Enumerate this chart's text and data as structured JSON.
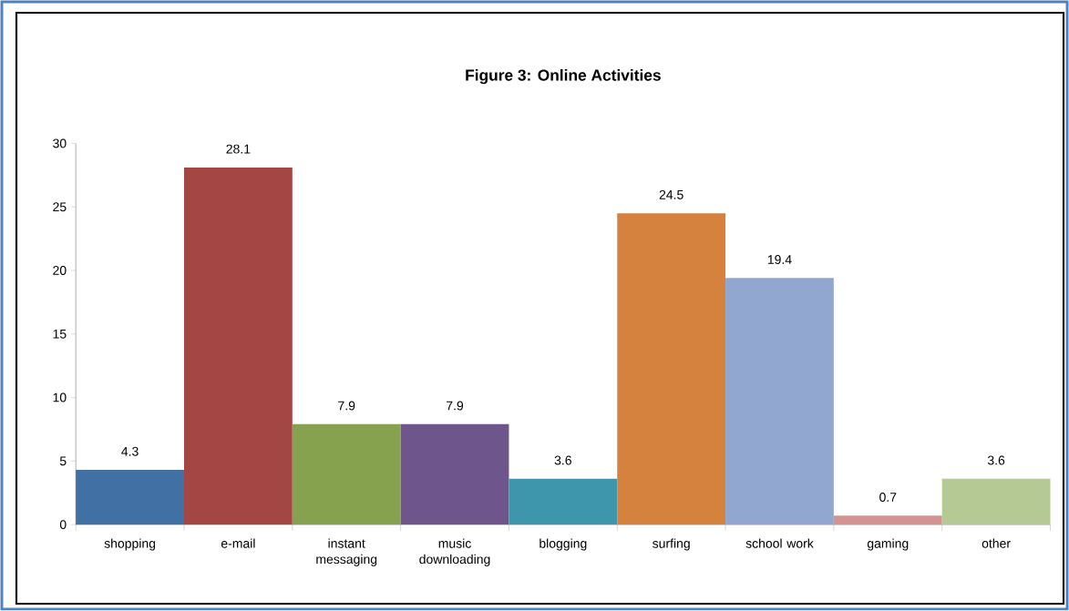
{
  "chart_data": {
    "type": "bar",
    "title": "Figure 3: Online Activities",
    "categories": [
      "shopping",
      "e-mail",
      "instant messaging",
      "music downloading",
      "blogging",
      "surfing",
      "school work",
      "gaming",
      "other"
    ],
    "values": [
      4.3,
      28.1,
      7.9,
      7.9,
      3.6,
      24.5,
      19.4,
      0.7,
      3.6
    ],
    "colors": [
      "#4170a4",
      "#a44643",
      "#87a24e",
      "#6e568d",
      "#3e96ad",
      "#d6823f",
      "#92a7cf",
      "#d39391",
      "#b4c994"
    ],
    "ylim": [
      0,
      30
    ],
    "yticks": [
      0,
      5,
      10,
      15,
      20,
      25,
      30
    ],
    "data_labels": true
  }
}
